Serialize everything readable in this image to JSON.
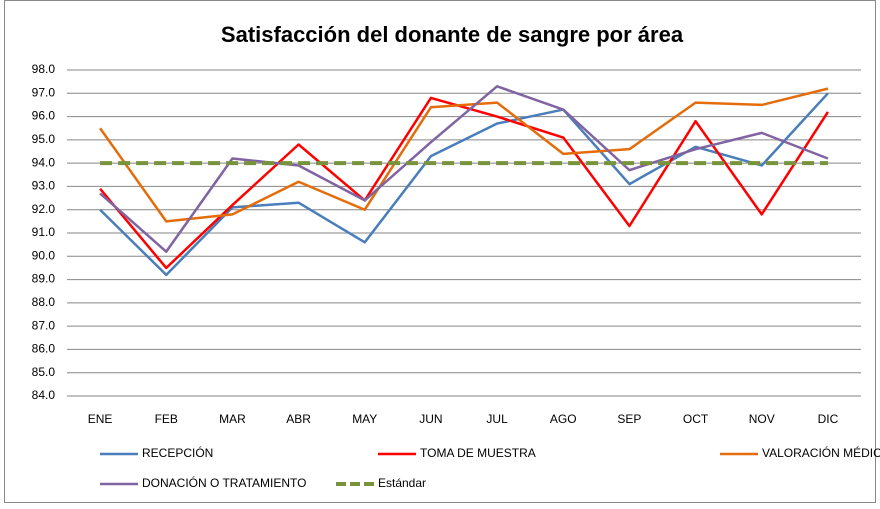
{
  "chart_data": {
    "type": "line",
    "title": "Satisfacción del donante de sangre por área",
    "categories": [
      "ENE",
      "FEB",
      "MAR",
      "ABR",
      "MAY",
      "JUN",
      "JUL",
      "AGO",
      "SEP",
      "OCT",
      "NOV",
      "DIC"
    ],
    "series": [
      {
        "name": "RECEPCIÓN",
        "color": "#4a7ebb",
        "values": [
          92.0,
          89.2,
          92.1,
          92.3,
          90.6,
          94.3,
          95.7,
          96.3,
          93.1,
          94.7,
          93.9,
          97.0
        ]
      },
      {
        "name": "TOMA DE MUESTRA",
        "color": "#ff0000",
        "values": [
          92.9,
          89.5,
          92.2,
          94.8,
          92.4,
          96.8,
          96.0,
          95.1,
          91.3,
          95.8,
          91.8,
          96.2
        ]
      },
      {
        "name": "VALORACIÓN MÉDICA",
        "color": "#e46c0a",
        "values": [
          95.5,
          91.5,
          91.8,
          93.2,
          92.0,
          96.4,
          96.6,
          94.4,
          94.6,
          96.6,
          96.5,
          97.2
        ]
      },
      {
        "name": "DONACIÓN O TRATAMIENTO",
        "color": "#8064a2",
        "values": [
          92.7,
          90.2,
          94.2,
          93.9,
          92.4,
          94.9,
          97.3,
          96.3,
          93.7,
          94.6,
          95.3,
          94.2
        ]
      },
      {
        "name": "Estándar",
        "color": "#77933c",
        "dashed": true,
        "values": [
          94,
          94,
          94,
          94,
          94,
          94,
          94,
          94,
          94,
          94,
          94,
          94
        ]
      }
    ],
    "ylim": [
      84,
      98
    ],
    "yticks": [
      {
        "value": 84,
        "label": "84.0"
      },
      {
        "value": 85,
        "label": "85.0"
      },
      {
        "value": 86,
        "label": "86.0"
      },
      {
        "value": 87,
        "label": "87.0"
      },
      {
        "value": 88,
        "label": "88.0"
      },
      {
        "value": 89,
        "label": "89.0"
      },
      {
        "value": 90,
        "label": "90.0"
      },
      {
        "value": 91,
        "label": "91.0"
      },
      {
        "value": 92,
        "label": "92.0"
      },
      {
        "value": 93,
        "label": "93.0"
      },
      {
        "value": 94,
        "label": "94.0"
      },
      {
        "value": 95,
        "label": "95.0"
      },
      {
        "value": 96,
        "label": "96.0"
      },
      {
        "value": 97,
        "label": "97.0"
      },
      {
        "value": 98,
        "label": "98.0"
      }
    ],
    "grid": true
  }
}
